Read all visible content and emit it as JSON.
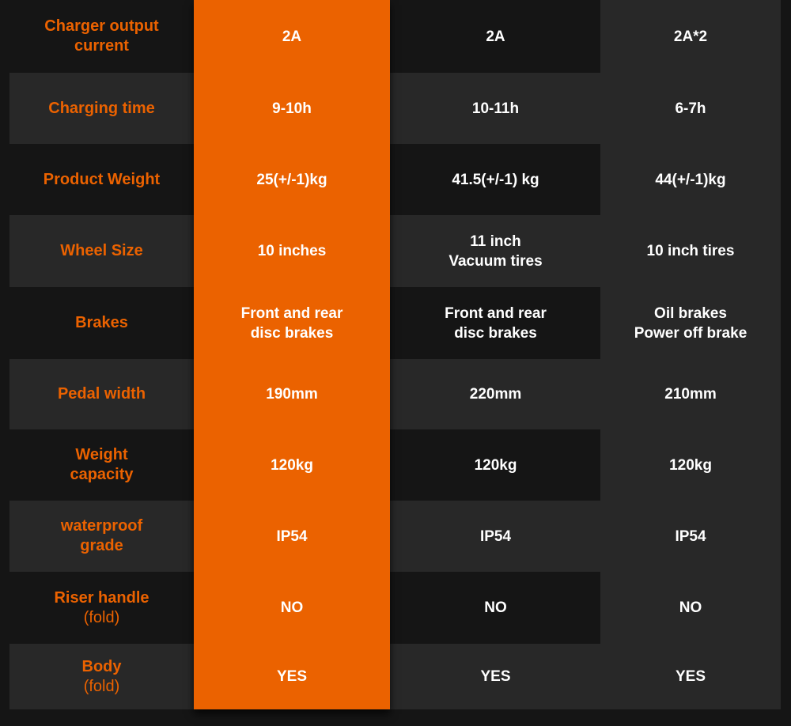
{
  "colors": {
    "accent": "#eb6200",
    "background": "#151515",
    "band": "#282828",
    "text": "#ffffff"
  },
  "rows": [
    {
      "label": "Charger output\ncurrent",
      "values": [
        "2A",
        "2A",
        "2A*2"
      ]
    },
    {
      "label": "Charging time",
      "values": [
        "9-10h",
        "10-11h",
        "6-7h"
      ]
    },
    {
      "label": "Product Weight",
      "values": [
        "25(+/-1)kg",
        "41.5(+/-1) kg",
        "44(+/-1)kg"
      ]
    },
    {
      "label": "Wheel Size",
      "values": [
        "10 inches",
        "11 inch\nVacuum tires",
        "10 inch tires"
      ]
    },
    {
      "label": "Brakes",
      "values": [
        "Front and rear\ndisc brakes",
        "Front and rear\ndisc brakes",
        "Oil brakes\nPower off brake"
      ]
    },
    {
      "label": "Pedal width",
      "values": [
        "190mm",
        "220mm",
        "210mm"
      ]
    },
    {
      "label": "Weight\ncapacity",
      "values": [
        "120kg",
        "120kg",
        "120kg"
      ]
    },
    {
      "label": "waterproof\ngrade",
      "values": [
        "IP54",
        "IP54",
        "IP54"
      ]
    },
    {
      "label": "Riser handle",
      "label_sub": "(fold)",
      "values": [
        "NO",
        "NO",
        "NO"
      ]
    },
    {
      "label": "Body",
      "label_sub": "(fold)",
      "values": [
        "YES",
        "YES",
        "YES"
      ]
    }
  ]
}
